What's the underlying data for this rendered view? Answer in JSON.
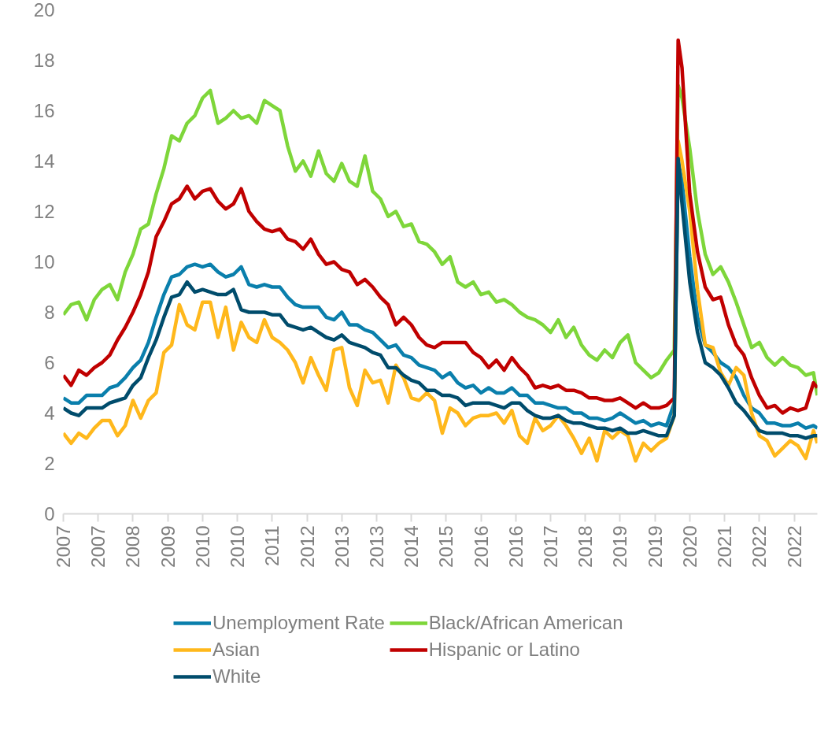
{
  "chart_data": {
    "type": "line",
    "x": [
      "2007-01",
      "2007-03",
      "2007-05",
      "2007-07",
      "2007-09",
      "2007-11",
      "2008-01",
      "2008-03",
      "2008-05",
      "2008-07",
      "2008-09",
      "2008-11",
      "2009-01",
      "2009-03",
      "2009-05",
      "2009-07",
      "2009-09",
      "2009-11",
      "2010-01",
      "2010-03",
      "2010-05",
      "2010-07",
      "2010-09",
      "2010-11",
      "2011-01",
      "2011-03",
      "2011-05",
      "2011-07",
      "2011-09",
      "2011-11",
      "2012-01",
      "2012-03",
      "2012-05",
      "2012-07",
      "2012-09",
      "2012-11",
      "2013-01",
      "2013-03",
      "2013-05",
      "2013-07",
      "2013-09",
      "2013-11",
      "2014-01",
      "2014-03",
      "2014-05",
      "2014-07",
      "2014-09",
      "2014-11",
      "2015-01",
      "2015-03",
      "2015-05",
      "2015-07",
      "2015-09",
      "2015-11",
      "2016-01",
      "2016-03",
      "2016-05",
      "2016-07",
      "2016-09",
      "2016-11",
      "2017-01",
      "2017-03",
      "2017-05",
      "2017-07",
      "2017-09",
      "2017-11",
      "2018-01",
      "2018-03",
      "2018-05",
      "2018-07",
      "2018-09",
      "2018-11",
      "2019-01",
      "2019-03",
      "2019-05",
      "2019-07",
      "2019-09",
      "2019-11",
      "2020-01",
      "2020-03",
      "2020-04",
      "2020-05",
      "2020-07",
      "2020-09",
      "2020-11",
      "2021-01",
      "2021-03",
      "2021-05",
      "2021-07",
      "2021-09",
      "2021-11",
      "2022-01",
      "2022-03",
      "2022-05",
      "2022-07",
      "2022-09",
      "2022-11",
      "2023-01",
      "2023-03",
      "2023-04"
    ],
    "series": [
      {
        "name": "Unemployment Rate",
        "color": "#0a7fac",
        "values": [
          4.6,
          4.4,
          4.4,
          4.7,
          4.7,
          4.7,
          5.0,
          5.1,
          5.4,
          5.8,
          6.1,
          6.8,
          7.8,
          8.7,
          9.4,
          9.5,
          9.8,
          9.9,
          9.8,
          9.9,
          9.6,
          9.4,
          9.5,
          9.8,
          9.1,
          9.0,
          9.1,
          9.0,
          9.0,
          8.6,
          8.3,
          8.2,
          8.2,
          8.2,
          7.8,
          7.7,
          8.0,
          7.5,
          7.5,
          7.3,
          7.2,
          6.9,
          6.6,
          6.7,
          6.3,
          6.2,
          5.9,
          5.8,
          5.7,
          5.4,
          5.6,
          5.2,
          5.0,
          5.1,
          4.8,
          5.0,
          4.8,
          4.8,
          5.0,
          4.7,
          4.7,
          4.4,
          4.4,
          4.3,
          4.2,
          4.2,
          4.0,
          4.0,
          3.8,
          3.8,
          3.7,
          3.8,
          4.0,
          3.8,
          3.6,
          3.7,
          3.5,
          3.6,
          3.5,
          4.4,
          14.0,
          13.2,
          10.2,
          7.8,
          6.7,
          6.4,
          6.0,
          5.8,
          5.4,
          4.7,
          4.2,
          4.0,
          3.6,
          3.6,
          3.5,
          3.5,
          3.6,
          3.4,
          3.5,
          3.4
        ]
      },
      {
        "name": "Black/African American",
        "color": "#7ed63a",
        "values": [
          7.9,
          8.3,
          8.4,
          7.7,
          8.5,
          8.9,
          9.1,
          8.5,
          9.6,
          10.3,
          11.3,
          11.5,
          12.7,
          13.7,
          15.0,
          14.8,
          15.5,
          15.8,
          16.5,
          16.8,
          15.5,
          15.7,
          16.0,
          15.7,
          15.8,
          15.5,
          16.4,
          16.2,
          16.0,
          14.6,
          13.6,
          14.0,
          13.4,
          14.4,
          13.5,
          13.2,
          13.9,
          13.2,
          13.0,
          14.2,
          12.8,
          12.5,
          11.8,
          12.0,
          11.4,
          11.5,
          10.8,
          10.7,
          10.4,
          9.9,
          10.2,
          9.2,
          9.0,
          9.2,
          8.7,
          8.8,
          8.4,
          8.5,
          8.3,
          8.0,
          7.8,
          7.7,
          7.5,
          7.2,
          7.7,
          7.0,
          7.4,
          6.7,
          6.3,
          6.1,
          6.5,
          6.2,
          6.8,
          7.1,
          6.0,
          5.7,
          5.4,
          5.6,
          6.1,
          6.5,
          17.0,
          16.5,
          14.5,
          12.0,
          10.3,
          9.5,
          9.8,
          9.2,
          8.4,
          7.5,
          6.6,
          6.8,
          6.2,
          5.9,
          6.2,
          5.9,
          5.8,
          5.5,
          5.6,
          4.7
        ]
      },
      {
        "name": "Asian",
        "color": "#ffb81c",
        "values": [
          3.2,
          2.8,
          3.2,
          3.0,
          3.4,
          3.7,
          3.7,
          3.1,
          3.5,
          4.5,
          3.8,
          4.5,
          4.8,
          6.4,
          6.7,
          8.3,
          7.5,
          7.3,
          8.4,
          8.4,
          7.0,
          8.2,
          6.5,
          7.6,
          7.0,
          6.8,
          7.7,
          7.0,
          6.8,
          6.5,
          6.0,
          5.2,
          6.2,
          5.5,
          4.9,
          6.5,
          6.6,
          5.0,
          4.3,
          5.7,
          5.2,
          5.3,
          4.4,
          5.9,
          5.4,
          4.6,
          4.5,
          4.8,
          4.5,
          3.2,
          4.2,
          4.0,
          3.5,
          3.8,
          3.9,
          3.9,
          4.0,
          3.6,
          4.1,
          3.1,
          2.8,
          3.8,
          3.3,
          3.5,
          3.9,
          3.5,
          3.0,
          2.4,
          3.0,
          2.1,
          3.3,
          3.0,
          3.3,
          3.1,
          2.1,
          2.8,
          2.5,
          2.8,
          3.0,
          3.9,
          14.8,
          14.0,
          12.0,
          8.9,
          6.7,
          6.6,
          5.6,
          5.1,
          5.8,
          5.5,
          4.0,
          3.1,
          2.9,
          2.3,
          2.6,
          2.9,
          2.7,
          2.2,
          3.3,
          2.8
        ]
      },
      {
        "name": "Hispanic or Latino",
        "color": "#c00000",
        "values": [
          5.5,
          5.1,
          5.7,
          5.5,
          5.8,
          6.0,
          6.3,
          6.9,
          7.4,
          8.0,
          8.7,
          9.6,
          11.0,
          11.6,
          12.3,
          12.5,
          13.0,
          12.5,
          12.8,
          12.9,
          12.4,
          12.1,
          12.3,
          12.9,
          12.0,
          11.6,
          11.3,
          11.2,
          11.3,
          10.9,
          10.8,
          10.5,
          10.9,
          10.3,
          9.9,
          10.0,
          9.7,
          9.6,
          9.1,
          9.3,
          9.0,
          8.6,
          8.3,
          7.5,
          7.8,
          7.5,
          7.0,
          6.7,
          6.6,
          6.8,
          6.8,
          6.8,
          6.8,
          6.4,
          6.2,
          5.8,
          6.1,
          5.7,
          6.2,
          5.8,
          5.5,
          5.0,
          5.1,
          5.0,
          5.1,
          4.9,
          4.9,
          4.8,
          4.6,
          4.6,
          4.5,
          4.5,
          4.6,
          4.4,
          4.2,
          4.4,
          4.2,
          4.2,
          4.3,
          4.6,
          18.8,
          17.7,
          12.7,
          10.4,
          9.0,
          8.5,
          8.6,
          7.5,
          6.7,
          6.3,
          5.4,
          4.7,
          4.2,
          4.3,
          4.0,
          4.2,
          4.1,
          4.2,
          5.2,
          5.0
        ]
      },
      {
        "name": "White",
        "color": "#004c6c",
        "values": [
          4.2,
          4.0,
          3.9,
          4.2,
          4.2,
          4.2,
          4.4,
          4.5,
          4.6,
          5.1,
          5.4,
          6.2,
          6.9,
          7.8,
          8.6,
          8.7,
          9.2,
          8.8,
          8.9,
          8.8,
          8.7,
          8.7,
          8.9,
          8.1,
          8.0,
          8.0,
          8.0,
          7.9,
          7.9,
          7.5,
          7.4,
          7.3,
          7.4,
          7.2,
          7.0,
          6.9,
          7.1,
          6.8,
          6.7,
          6.6,
          6.4,
          6.3,
          5.8,
          5.8,
          5.5,
          5.3,
          5.2,
          4.9,
          4.9,
          4.7,
          4.7,
          4.6,
          4.3,
          4.4,
          4.4,
          4.4,
          4.3,
          4.2,
          4.4,
          4.4,
          4.1,
          3.9,
          3.8,
          3.8,
          3.9,
          3.7,
          3.6,
          3.6,
          3.5,
          3.4,
          3.4,
          3.3,
          3.4,
          3.2,
          3.2,
          3.3,
          3.2,
          3.1,
          3.1,
          3.9,
          14.1,
          12.3,
          9.2,
          7.2,
          6.0,
          5.8,
          5.5,
          5.0,
          4.4,
          4.1,
          3.7,
          3.3,
          3.2,
          3.2,
          3.2,
          3.1,
          3.1,
          3.0,
          3.1,
          3.1
        ]
      }
    ],
    "xlim": [
      "2007-01",
      "2023-04"
    ],
    "xticks": [
      {
        "value": "2007-01",
        "label": "2007"
      },
      {
        "value": "2007-10",
        "label": "2007"
      },
      {
        "value": "2008-07",
        "label": "2008"
      },
      {
        "value": "2009-04",
        "label": "2009"
      },
      {
        "value": "2010-01",
        "label": "2010"
      },
      {
        "value": "2010-10",
        "label": "2010"
      },
      {
        "value": "2011-07",
        "label": "2011"
      },
      {
        "value": "2012-04",
        "label": "2012"
      },
      {
        "value": "2013-01",
        "label": "2013"
      },
      {
        "value": "2013-10",
        "label": "2013"
      },
      {
        "value": "2014-07",
        "label": "2014"
      },
      {
        "value": "2015-04",
        "label": "2015"
      },
      {
        "value": "2016-01",
        "label": "2016"
      },
      {
        "value": "2016-10",
        "label": "2016"
      },
      {
        "value": "2017-07",
        "label": "2017"
      },
      {
        "value": "2018-04",
        "label": "2018"
      },
      {
        "value": "2019-01",
        "label": "2019"
      },
      {
        "value": "2019-10",
        "label": "2019"
      },
      {
        "value": "2020-07",
        "label": "2020"
      },
      {
        "value": "2021-04",
        "label": "2021"
      },
      {
        "value": "2022-01",
        "label": "2022"
      },
      {
        "value": "2022-10",
        "label": "2022"
      }
    ],
    "ylim": [
      0,
      20
    ],
    "yticks": [
      0,
      2,
      4,
      6,
      8,
      10,
      12,
      14,
      16,
      18,
      20
    ],
    "grid": false,
    "legend": "bottom",
    "marker": "none",
    "line_style": "solid"
  }
}
